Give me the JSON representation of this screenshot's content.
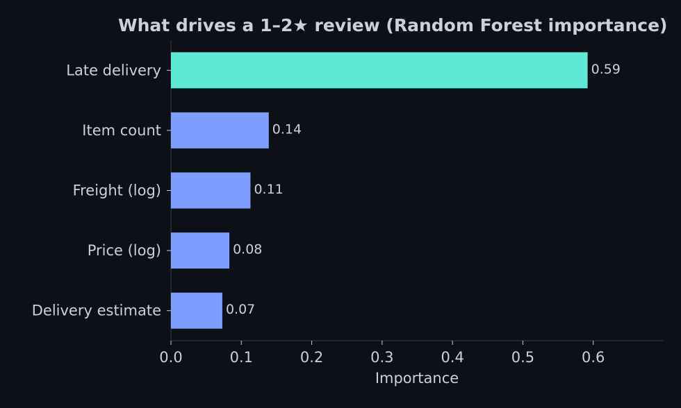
{
  "chart_data": {
    "type": "barh",
    "title": "What drives a 1–2★ review (Random Forest importance)",
    "categories": [
      "Late delivery",
      "Item count",
      "Freight (log)",
      "Price (log)",
      "Delivery estimate"
    ],
    "values": [
      0.592,
      0.139,
      0.113,
      0.083,
      0.073
    ],
    "value_labels": [
      "0.59",
      "0.14",
      "0.11",
      "0.08",
      "0.07"
    ],
    "colors": [
      "#5ee8d6",
      "#7f9cff",
      "#7f9cff",
      "#7f9cff",
      "#7f9cff"
    ],
    "xlabel": "Importance",
    "xlim": [
      0,
      0.7
    ],
    "xticks": [
      {
        "value": 0,
        "label": "0.0"
      },
      0.1,
      0.2,
      0.3,
      0.4,
      0.5,
      0.6
    ]
  }
}
